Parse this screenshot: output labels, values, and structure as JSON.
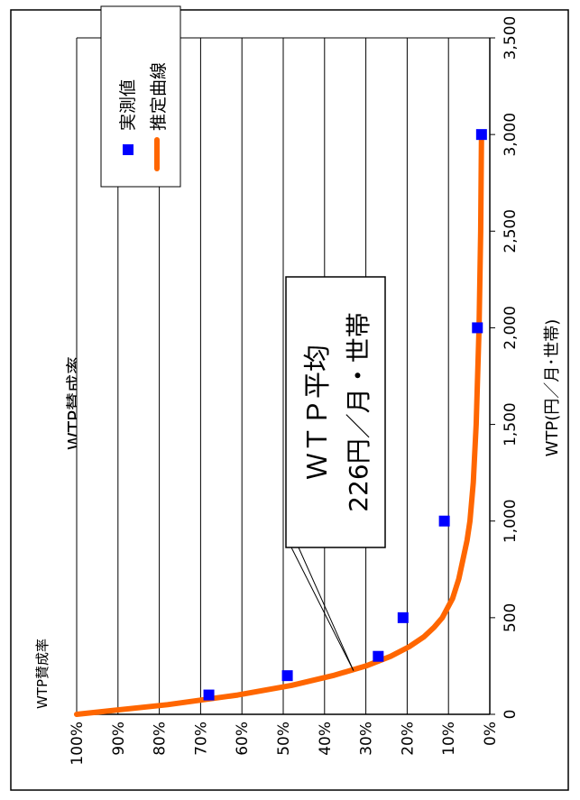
{
  "chart_data": {
    "type": "scatter",
    "title": "WTP賛成率",
    "xlabel": "WTP(円／月･世帯)",
    "ylabel": "WTP賛成率",
    "xlim": [
      0,
      3500
    ],
    "ylim": [
      0,
      100
    ],
    "x_ticks": [
      "0",
      "500",
      "1,000",
      "1,500",
      "2,000",
      "2,500",
      "3,000",
      "3,500"
    ],
    "y_ticks": [
      "0%",
      "10%",
      "20%",
      "30%",
      "40%",
      "50%",
      "60%",
      "70%",
      "80%",
      "90%",
      "100%"
    ],
    "grid": "horizontal",
    "legend_position": "top-right",
    "series": [
      {
        "name": "実測値",
        "kind": "points",
        "color": "#0000ff",
        "x": [
          100,
          200,
          300,
          500,
          1000,
          2000,
          3000
        ],
        "y": [
          68,
          49,
          27,
          21,
          11,
          3,
          2
        ]
      },
      {
        "name": "推定曲線",
        "kind": "line",
        "color": "#ff6600",
        "x": [
          0,
          50,
          100,
          150,
          200,
          250,
          300,
          350,
          400,
          450,
          500,
          600,
          700,
          800,
          900,
          1000,
          1200,
          1500,
          2000,
          2500,
          3000
        ],
        "y": [
          100,
          78,
          61,
          48,
          38,
          30,
          24,
          19.5,
          16,
          13.5,
          11.5,
          9,
          7.5,
          6.5,
          5.5,
          4.8,
          4,
          3.3,
          2.6,
          2.2,
          2
        ]
      }
    ],
    "annotation": {
      "line1": "ＷＴＰ平均",
      "line2": "226円／月・世帯",
      "point_x": 226,
      "point_y": 33
    }
  }
}
